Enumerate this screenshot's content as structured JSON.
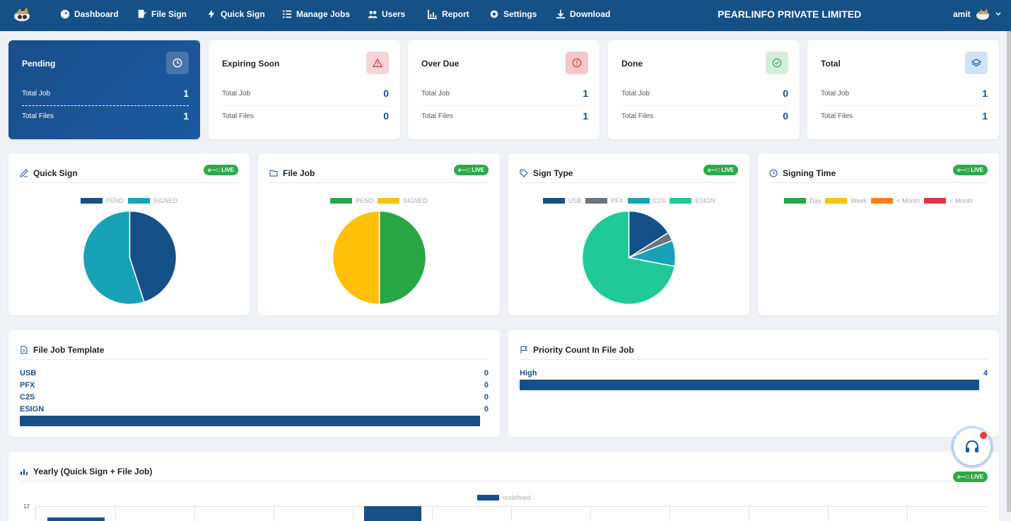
{
  "nav": {
    "items": [
      {
        "label": "Dashboard",
        "icon": "dashboard-icon"
      },
      {
        "label": "File Sign",
        "icon": "file-sign-icon"
      },
      {
        "label": "Quick Sign",
        "icon": "lightning-icon"
      },
      {
        "label": "Manage Jobs",
        "icon": "list-icon"
      },
      {
        "label": "Users",
        "icon": "users-icon"
      },
      {
        "label": "Report",
        "icon": "chart-icon"
      },
      {
        "label": "Settings",
        "icon": "gear-icon"
      },
      {
        "label": "Download",
        "icon": "download-icon"
      }
    ],
    "brand": "PEARLINFO PRIVATE LIMITED",
    "user": "amit"
  },
  "stats": [
    {
      "title": "Pending",
      "total_job_label": "Total Job",
      "total_job": "1",
      "total_files_label": "Total Files",
      "total_files": "1",
      "icon": "clock-icon",
      "icon_bg": "#4a75a8",
      "icon_color": "#ffffff"
    },
    {
      "title": "Expiring Soon",
      "total_job_label": "Total Job",
      "total_job": "0",
      "total_files_label": "Total Files",
      "total_files": "0",
      "icon": "warning-icon",
      "icon_bg": "#f5d5d8",
      "icon_color": "#c0392b"
    },
    {
      "title": "Over Due",
      "total_job_label": "Total Job",
      "total_job": "1",
      "total_files_label": "Total Files",
      "total_files": "1",
      "icon": "alert-circle-icon",
      "icon_bg": "#f5c6cb",
      "icon_color": "#c0392b"
    },
    {
      "title": "Done",
      "total_job_label": "Total Job",
      "total_job": "0",
      "total_files_label": "Total Files",
      "total_files": "0",
      "icon": "check-circle-icon",
      "icon_bg": "#d4edda",
      "icon_color": "#28a745"
    },
    {
      "title": "Total",
      "total_job_label": "Total Job",
      "total_job": "1",
      "total_files_label": "Total Files",
      "total_files": "1",
      "icon": "layers-icon",
      "icon_bg": "#cfe2f7",
      "icon_color": "#1a4f8b"
    }
  ],
  "charts": {
    "live_label": "ƨ—□ LIVE",
    "quick_sign": {
      "title": "Quick Sign",
      "legend": [
        "PEND",
        "SIGNED"
      ],
      "colors": [
        "#155087",
        "#17a2b8"
      ]
    },
    "file_job": {
      "title": "File Job",
      "legend": [
        "PEND",
        "SIGNED"
      ],
      "colors": [
        "#28a745",
        "#ffc107"
      ]
    },
    "sign_type": {
      "title": "Sign Type",
      "legend": [
        "USB",
        "PFX",
        "C2S",
        "ESIGN"
      ],
      "colors": [
        "#155087",
        "#6c757d",
        "#17a2b8",
        "#20c997"
      ]
    },
    "signing_time": {
      "title": "Signing Time",
      "legend": [
        "Day",
        "Week",
        "< Month",
        "< Month"
      ],
      "colors": [
        "#28a745",
        "#ffc107",
        "#fd7e14",
        "#dc3545"
      ]
    }
  },
  "chart_data": [
    {
      "type": "pie",
      "title": "Quick Sign",
      "categories": [
        "PEND",
        "SIGNED"
      ],
      "values": [
        45,
        55
      ]
    },
    {
      "type": "pie",
      "title": "File Job",
      "categories": [
        "PEND",
        "SIGNED"
      ],
      "values": [
        50,
        50
      ]
    },
    {
      "type": "pie",
      "title": "Sign Type",
      "categories": [
        "USB",
        "PFX",
        "C2S",
        "ESIGN"
      ],
      "values": [
        16,
        3,
        9,
        72
      ]
    },
    {
      "type": "bar",
      "title": "Yearly (Quick Sign + File Job)",
      "series": [
        {
          "name": "undefined",
          "values": []
        }
      ],
      "ylim": [
        0,
        12
      ],
      "y_tick_top": "12"
    }
  ],
  "template": {
    "title": "File Job Template",
    "rows": [
      {
        "label": "USB",
        "value": "0"
      },
      {
        "label": "PFX",
        "value": "0"
      },
      {
        "label": "C2S",
        "value": "0"
      },
      {
        "label": "ESIGN",
        "value": "0"
      }
    ]
  },
  "priority": {
    "title": "Priority Count In File Job",
    "rows": [
      {
        "label": "High",
        "value": "4"
      }
    ]
  },
  "yearly": {
    "title": "Yearly (Quick Sign + File Job)",
    "legend": "undefined",
    "y_top": "12"
  }
}
